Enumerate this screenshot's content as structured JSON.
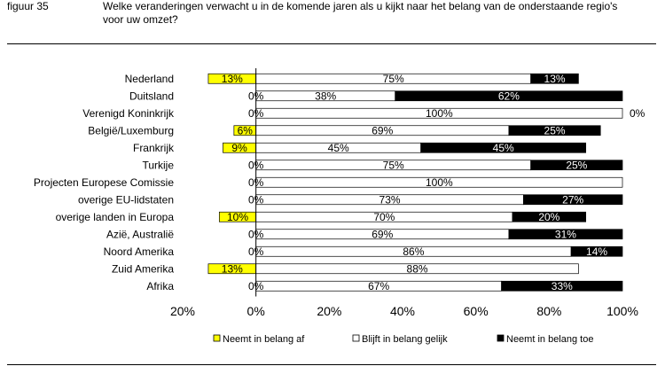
{
  "header": {
    "figure_label": "figuur 35",
    "title": "Welke veranderingen verwacht u in de komende jaren als u kijkt naar het belang van de onderstaande regio's voor uw omzet?"
  },
  "chart_data": {
    "type": "bar",
    "orientation": "horizontal",
    "stacked": true,
    "categories": [
      "Nederland",
      "Duitsland",
      "Verenigd Koninkrijk",
      "België/Luxemburg",
      "Frankrijk",
      "Turkije",
      "Projecten Europese Comissie",
      "overige EU-lidstaten",
      "overige landen in Europa",
      "Azië, Australië",
      "Noord Amerika",
      "Zuid Amerika",
      "Afrika"
    ],
    "series": [
      {
        "name": "Neemt in belang af",
        "color": "#ffff00",
        "direction": "negative",
        "values": [
          13,
          0,
          0,
          6,
          9,
          0,
          0,
          0,
          10,
          0,
          0,
          13,
          0
        ],
        "labels": [
          "13%",
          "0%",
          "0%",
          "6%",
          "9%",
          "0%",
          "0%",
          "0%",
          "10%",
          "0%",
          "0%",
          "13%",
          "0%"
        ]
      },
      {
        "name": "Blijft in belang gelijk",
        "color": "#ffffff",
        "values": [
          75,
          38,
          100,
          69,
          45,
          75,
          100,
          73,
          70,
          69,
          86,
          88,
          67
        ],
        "labels": [
          "75%",
          "38%",
          "100%",
          "69%",
          "45%",
          "75%",
          "100%",
          "73%",
          "70%",
          "69%",
          "86%",
          "88%",
          "67%"
        ]
      },
      {
        "name": "Neemt in belang toe",
        "color": "#000000",
        "values": [
          13,
          62,
          0,
          25,
          45,
          25,
          0,
          27,
          20,
          31,
          14,
          0,
          33
        ],
        "labels": [
          "13%",
          "62%",
          "0%",
          "25%",
          "45%",
          "25%",
          "",
          "27%",
          "20%",
          "31%",
          "14%",
          "",
          "33%"
        ]
      }
    ],
    "x_ticks": [
      "20%",
      "0%",
      "20%",
      "40%",
      "60%",
      "80%",
      "100%"
    ],
    "xlim": [
      -20,
      100
    ],
    "grid": false,
    "legend_position": "bottom"
  }
}
